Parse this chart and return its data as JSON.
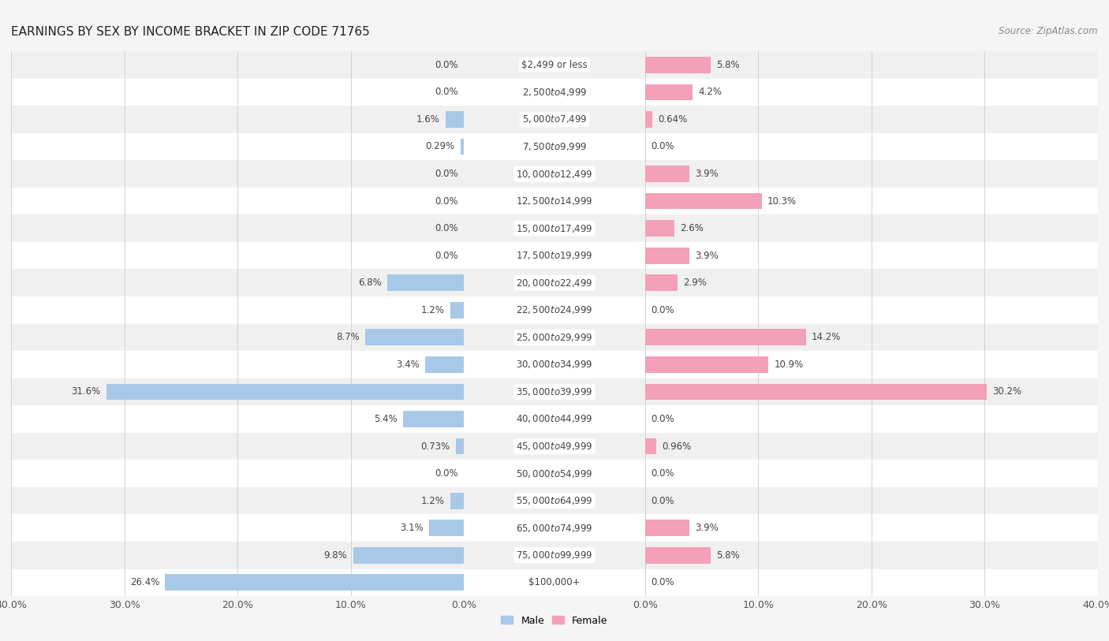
{
  "title": "EARNINGS BY SEX BY INCOME BRACKET IN ZIP CODE 71765",
  "source": "Source: ZipAtlas.com",
  "categories": [
    "$2,499 or less",
    "$2,500 to $4,999",
    "$5,000 to $7,499",
    "$7,500 to $9,999",
    "$10,000 to $12,499",
    "$12,500 to $14,999",
    "$15,000 to $17,499",
    "$17,500 to $19,999",
    "$20,000 to $22,499",
    "$22,500 to $24,999",
    "$25,000 to $29,999",
    "$30,000 to $34,999",
    "$35,000 to $39,999",
    "$40,000 to $44,999",
    "$45,000 to $49,999",
    "$50,000 to $54,999",
    "$55,000 to $64,999",
    "$65,000 to $74,999",
    "$75,000 to $99,999",
    "$100,000+"
  ],
  "male_values": [
    0.0,
    0.0,
    1.6,
    0.29,
    0.0,
    0.0,
    0.0,
    0.0,
    6.8,
    1.2,
    8.7,
    3.4,
    31.6,
    5.4,
    0.73,
    0.0,
    1.2,
    3.1,
    9.8,
    26.4
  ],
  "female_values": [
    5.8,
    4.2,
    0.64,
    0.0,
    3.9,
    10.3,
    2.6,
    3.9,
    2.9,
    0.0,
    14.2,
    10.9,
    30.2,
    0.0,
    0.96,
    0.0,
    0.0,
    3.9,
    5.8,
    0.0
  ],
  "male_color": "#a8c8e8",
  "female_color": "#f4a0b8",
  "male_label": "Male",
  "female_label": "Female",
  "xlim": 40.0,
  "row_colors": [
    "#f0f0f0",
    "#ffffff"
  ],
  "title_fontsize": 11,
  "cat_fontsize": 8.5,
  "val_fontsize": 8.5,
  "tick_fontsize": 9,
  "source_fontsize": 8.5
}
